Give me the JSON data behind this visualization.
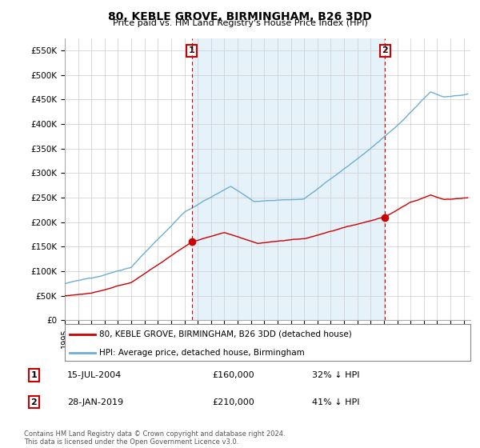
{
  "title": "80, KEBLE GROVE, BIRMINGHAM, B26 3DD",
  "subtitle": "Price paid vs. HM Land Registry's House Price Index (HPI)",
  "ylabel_ticks": [
    "£0",
    "£50K",
    "£100K",
    "£150K",
    "£200K",
    "£250K",
    "£300K",
    "£350K",
    "£400K",
    "£450K",
    "£500K",
    "£550K"
  ],
  "ytick_values": [
    0,
    50000,
    100000,
    150000,
    200000,
    250000,
    300000,
    350000,
    400000,
    450000,
    500000,
    550000
  ],
  "ylim": [
    0,
    575000
  ],
  "xlim_start": 1995.0,
  "xlim_end": 2025.5,
  "hpi_color": "#6baed6",
  "hpi_fill_color": "#d6eaf8",
  "price_color": "#cc0000",
  "marker1_date": 2004.54,
  "marker1_label": "1",
  "marker1_price": 160000,
  "marker1_text": "15-JUL-2004",
  "marker1_pct": "32% ↓ HPI",
  "marker2_date": 2019.08,
  "marker2_label": "2",
  "marker2_price": 210000,
  "marker2_text": "28-JAN-2019",
  "marker2_pct": "41% ↓ HPI",
  "legend_label_price": "80, KEBLE GROVE, BIRMINGHAM, B26 3DD (detached house)",
  "legend_label_hpi": "HPI: Average price, detached house, Birmingham",
  "footnote": "Contains HM Land Registry data © Crown copyright and database right 2024.\nThis data is licensed under the Open Government Licence v3.0.",
  "background_color": "#ffffff",
  "grid_color": "#cccccc",
  "marker_vline_color": "#cc0000",
  "marker_box_color": "#cc0000"
}
